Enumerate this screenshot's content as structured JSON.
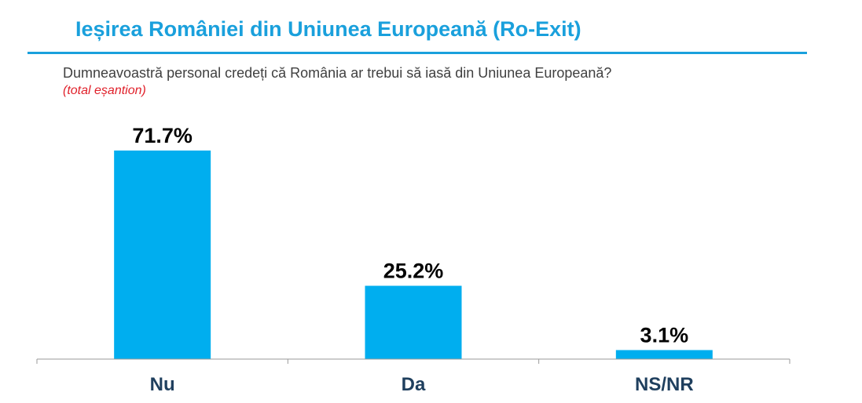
{
  "title": "Ieșirea României din Uniunea Europeană (Ro-Exit)",
  "question": "Dumneavoastră personal credeți că România ar trebui să iasă din Uniunea Europeană?",
  "sample_note": "(total eșantion)",
  "colors": {
    "accent": "#1aa0dc",
    "bar": "#00aeef",
    "note": "#e0202a",
    "category": "#1f3f5e"
  },
  "chart_data": {
    "type": "bar",
    "categories": [
      "Nu",
      "Da",
      "NS/NR"
    ],
    "values": [
      71.7,
      25.2,
      3.1
    ],
    "value_labels": [
      "71.7%",
      "25.2%",
      "3.1%"
    ],
    "title": "",
    "xlabel": "",
    "ylabel": "",
    "ylim": [
      0,
      100
    ],
    "grid": false,
    "legend": "none"
  }
}
